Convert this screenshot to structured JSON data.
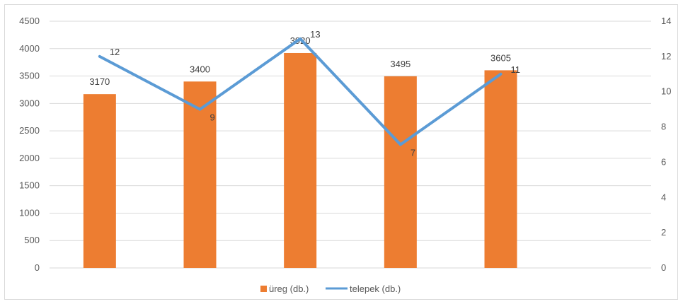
{
  "chart_data": {
    "type": "bar",
    "categories": [
      "",
      "",
      "",
      "",
      ""
    ],
    "series": [
      {
        "name": "üreg (db.)",
        "type": "bar",
        "axis": "left",
        "values": [
          3170,
          3400,
          3920,
          3495,
          3605
        ],
        "color": "#ED7D31"
      },
      {
        "name": "telepek (db.)",
        "type": "line",
        "axis": "right",
        "values": [
          12,
          9,
          13,
          7,
          11
        ],
        "color": "#5B9BD5"
      }
    ],
    "y_left": {
      "min": 0,
      "max": 4500,
      "ticks": [
        "0",
        "500",
        "1000",
        "1500",
        "2000",
        "2500",
        "3000",
        "3500",
        "4000",
        "4500"
      ]
    },
    "y_right": {
      "min": 0,
      "max": 14,
      "ticks": [
        "0",
        "2",
        "4",
        "6",
        "8",
        "10",
        "12",
        "14"
      ]
    },
    "bar_labels": [
      "3170",
      "3400",
      "3920",
      "3495",
      "3605"
    ],
    "line_labels": [
      "12",
      "9",
      "13",
      "7",
      "11"
    ],
    "grid": true,
    "legend": {
      "position": "bottom",
      "items": [
        "üreg (db.)",
        "telepek (db.)"
      ]
    }
  }
}
